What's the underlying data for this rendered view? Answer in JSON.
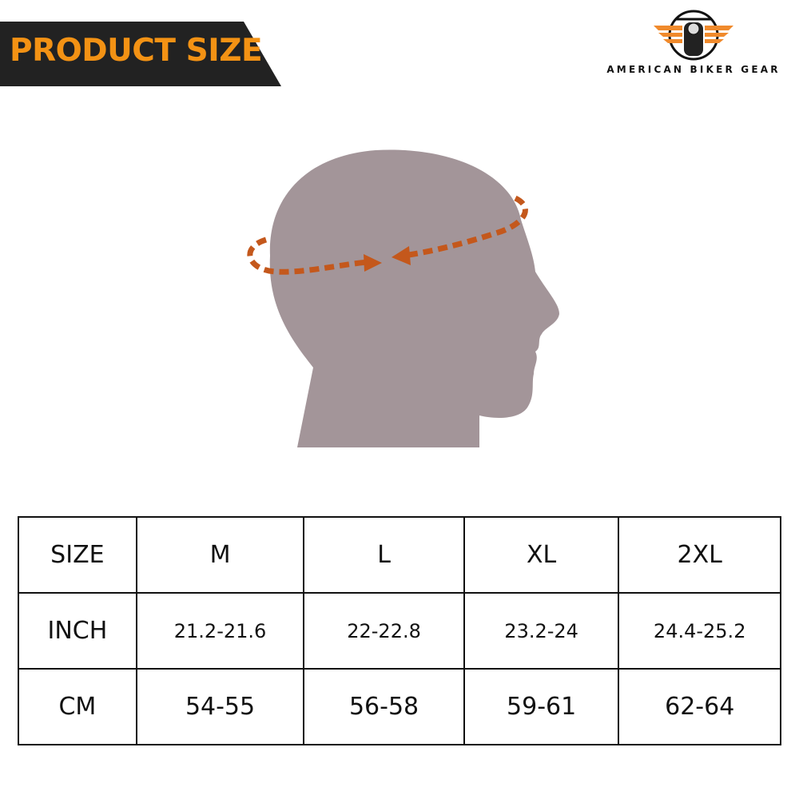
{
  "banner": {
    "title": "PRODUCT SIZE",
    "bg_color": "#222222",
    "text_color": "#f39214"
  },
  "logo": {
    "text": "AMERICAN BIKER GEAR",
    "accent_color": "#f08a2c"
  },
  "accent_color": "#c4581c",
  "size_table": {
    "header": [
      "SIZE",
      "M",
      "L",
      "XL",
      "2XL"
    ],
    "rows": [
      [
        "INCH",
        "21.2-21.6",
        "22-22.8",
        "23.2-24",
        "24.4-25.2"
      ],
      [
        "CM",
        "54-55",
        "56-58",
        "59-61",
        "62-64"
      ]
    ]
  }
}
